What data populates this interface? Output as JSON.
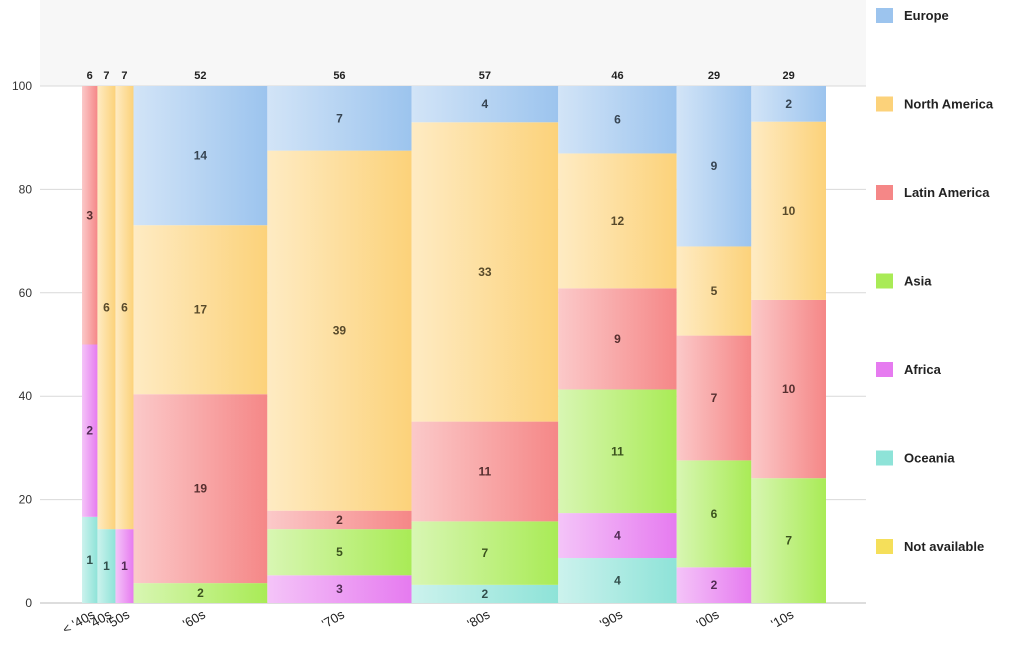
{
  "chart_data": {
    "type": "bar",
    "subtype": "mekko-100pct-stacked",
    "categories": [
      "< '40s",
      "'40s",
      "'50s",
      "'60s",
      "'70s",
      "'80s",
      "'90s",
      "'00s",
      "'10s"
    ],
    "totals": [
      6,
      7,
      7,
      52,
      56,
      57,
      46,
      29,
      29
    ],
    "series": [
      {
        "name": "Oceania",
        "values": [
          1,
          1,
          0,
          0,
          0,
          2,
          4,
          0,
          0
        ],
        "color": "#8ee3d8"
      },
      {
        "name": "Africa",
        "values": [
          2,
          0,
          1,
          0,
          3,
          0,
          4,
          2,
          0
        ],
        "color": "#e67bf0"
      },
      {
        "name": "Asia",
        "values": [
          0,
          0,
          0,
          2,
          5,
          7,
          11,
          6,
          7
        ],
        "color": "#a9eb56"
      },
      {
        "name": "Latin America",
        "values": [
          3,
          0,
          0,
          19,
          2,
          11,
          9,
          7,
          10
        ],
        "color": "#f58787"
      },
      {
        "name": "North America",
        "values": [
          0,
          6,
          6,
          17,
          39,
          33,
          12,
          5,
          10
        ],
        "color": "#fcd27a"
      },
      {
        "name": "Europe",
        "values": [
          0,
          0,
          0,
          14,
          7,
          4,
          6,
          9,
          2
        ],
        "color": "#9cc4ee"
      }
    ],
    "legend": [
      "Europe",
      "North America",
      "Latin America",
      "Asia",
      "Africa",
      "Oceania",
      "Not available"
    ],
    "legend_colors": {
      "Europe": "#9cc4ee",
      "North America": "#fcd27a",
      "Latin America": "#f58787",
      "Asia": "#a9eb56",
      "Africa": "#e67bf0",
      "Oceania": "#8ee3d8",
      "Not available": "#f5df5a"
    },
    "ylim": [
      0,
      100
    ],
    "yticks": [
      0,
      20,
      40,
      60,
      80,
      100
    ],
    "grid": true,
    "legend_position": "right",
    "xlabel": "",
    "ylabel": "",
    "title": ""
  }
}
